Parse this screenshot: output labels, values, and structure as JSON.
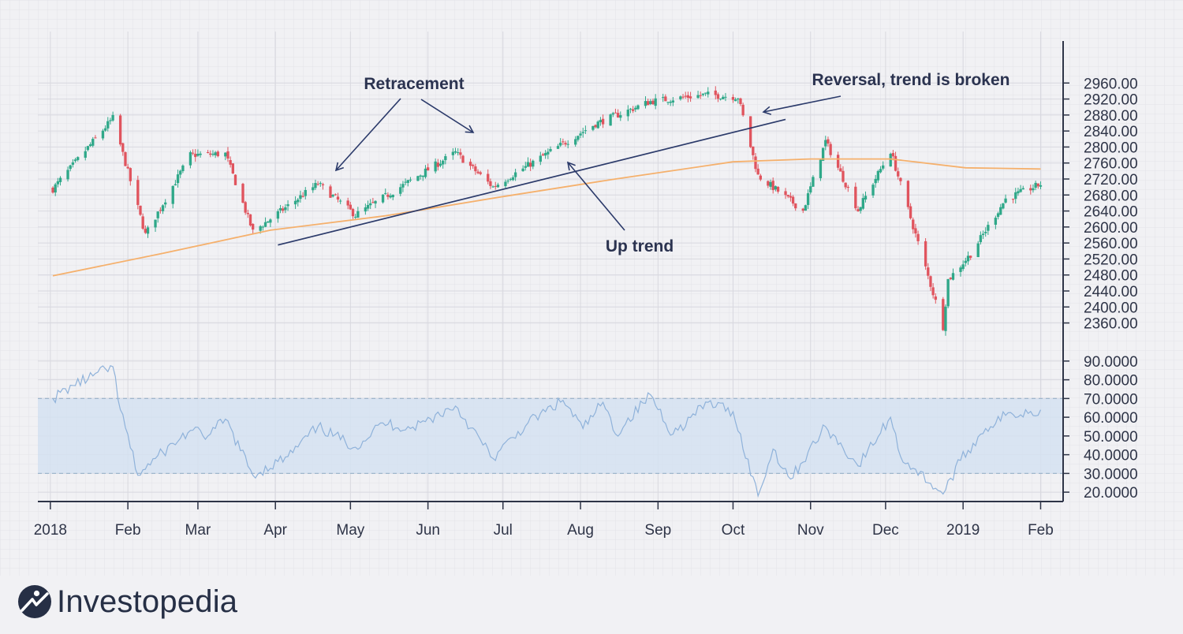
{
  "chart_data": [
    {
      "type": "candlestick",
      "ylim": [
        2300,
        3000
      ],
      "y_ticks": [
        "2960.00",
        "2920.00",
        "2880.00",
        "2840.00",
        "2800.00",
        "2760.00",
        "2720.00",
        "2680.00",
        "2640.00",
        "2600.00",
        "2560.00",
        "2520.00",
        "2480.00",
        "2440.00",
        "2400.00",
        "2360.00"
      ],
      "colors": {
        "up": "#2fa889",
        "down": "#e0545e",
        "moving_average": "#f5b06c",
        "trendline": "#2b3a6a"
      },
      "key_closes": [
        {
          "date": "2018-01-02",
          "value": 2695
        },
        {
          "date": "2018-01-26",
          "value": 2872
        },
        {
          "date": "2018-02-08",
          "value": 2581
        },
        {
          "date": "2018-02-26",
          "value": 2780
        },
        {
          "date": "2018-03-12",
          "value": 2783
        },
        {
          "date": "2018-03-23",
          "value": 2588
        },
        {
          "date": "2018-04-18",
          "value": 2708
        },
        {
          "date": "2018-05-03",
          "value": 2630
        },
        {
          "date": "2018-06-12",
          "value": 2786
        },
        {
          "date": "2018-06-27",
          "value": 2700
        },
        {
          "date": "2018-08-07",
          "value": 2858
        },
        {
          "date": "2018-08-29",
          "value": 2914
        },
        {
          "date": "2018-09-20",
          "value": 2931
        },
        {
          "date": "2018-10-03",
          "value": 2925
        },
        {
          "date": "2018-10-11",
          "value": 2728
        },
        {
          "date": "2018-10-29",
          "value": 2641
        },
        {
          "date": "2018-11-07",
          "value": 2814
        },
        {
          "date": "2018-11-20",
          "value": 2642
        },
        {
          "date": "2018-12-03",
          "value": 2790
        },
        {
          "date": "2018-12-24",
          "value": 2351
        },
        {
          "date": "2018-12-26",
          "value": 2468
        },
        {
          "date": "2019-01-04",
          "value": 2532
        },
        {
          "date": "2019-01-18",
          "value": 2670
        },
        {
          "date": "2019-02-01",
          "value": 2707
        }
      ],
      "moving_average": [
        {
          "date": "2018-01-02",
          "value": 2478
        },
        {
          "date": "2018-02-15",
          "value": 2534
        },
        {
          "date": "2018-03-30",
          "value": 2592
        },
        {
          "date": "2018-05-15",
          "value": 2628
        },
        {
          "date": "2018-07-01",
          "value": 2676
        },
        {
          "date": "2018-08-15",
          "value": 2720
        },
        {
          "date": "2018-10-01",
          "value": 2763
        },
        {
          "date": "2018-11-01",
          "value": 2770
        },
        {
          "date": "2018-12-03",
          "value": 2770
        },
        {
          "date": "2019-01-02",
          "value": 2748
        },
        {
          "date": "2019-02-01",
          "value": 2745
        }
      ],
      "trendline": [
        {
          "date": "2018-04-02",
          "value": 2555
        },
        {
          "date": "2018-10-08",
          "value": 2853
        },
        {
          "date": "2018-10-22",
          "value": 2869
        }
      ]
    },
    {
      "type": "line",
      "ylim": [
        15,
        95
      ],
      "y_ticks": [
        "90.0000",
        "80.0000",
        "70.0000",
        "60.0000",
        "50.0000",
        "40.0000",
        "30.0000",
        "20.0000"
      ],
      "band": [
        30,
        70
      ],
      "colors": {
        "line": "#8fb2da",
        "band": "#d5e2f1",
        "band_line": "#9fb6cc"
      },
      "series": [
        {
          "date": "2018-01-02",
          "value": 70
        },
        {
          "date": "2018-01-10",
          "value": 77
        },
        {
          "date": "2018-01-26",
          "value": 87
        },
        {
          "date": "2018-01-29",
          "value": 64
        },
        {
          "date": "2018-02-05",
          "value": 29
        },
        {
          "date": "2018-02-12",
          "value": 38
        },
        {
          "date": "2018-02-26",
          "value": 53
        },
        {
          "date": "2018-03-05",
          "value": 50
        },
        {
          "date": "2018-03-12",
          "value": 59
        },
        {
          "date": "2018-03-23",
          "value": 29
        },
        {
          "date": "2018-04-06",
          "value": 39
        },
        {
          "date": "2018-04-18",
          "value": 55
        },
        {
          "date": "2018-05-03",
          "value": 44
        },
        {
          "date": "2018-05-14",
          "value": 57
        },
        {
          "date": "2018-05-25",
          "value": 54
        },
        {
          "date": "2018-06-12",
          "value": 66
        },
        {
          "date": "2018-06-27",
          "value": 38
        },
        {
          "date": "2018-07-11",
          "value": 57
        },
        {
          "date": "2018-07-25",
          "value": 69
        },
        {
          "date": "2018-08-02",
          "value": 54
        },
        {
          "date": "2018-08-10",
          "value": 68
        },
        {
          "date": "2018-08-15",
          "value": 51
        },
        {
          "date": "2018-08-29",
          "value": 72
        },
        {
          "date": "2018-09-07",
          "value": 51
        },
        {
          "date": "2018-09-21",
          "value": 68
        },
        {
          "date": "2018-10-01",
          "value": 63
        },
        {
          "date": "2018-10-11",
          "value": 18
        },
        {
          "date": "2018-10-17",
          "value": 43
        },
        {
          "date": "2018-10-24",
          "value": 27
        },
        {
          "date": "2018-11-07",
          "value": 55
        },
        {
          "date": "2018-11-20",
          "value": 34
        },
        {
          "date": "2018-12-03",
          "value": 60
        },
        {
          "date": "2018-12-07",
          "value": 39
        },
        {
          "date": "2018-12-24",
          "value": 19
        },
        {
          "date": "2018-12-31",
          "value": 37
        },
        {
          "date": "2019-01-10",
          "value": 54
        },
        {
          "date": "2019-01-18",
          "value": 61
        },
        {
          "date": "2019-02-01",
          "value": 64
        }
      ]
    }
  ],
  "x_labels": [
    "2018",
    "Feb",
    "Mar",
    "Apr",
    "May",
    "Jun",
    "Jul",
    "Aug",
    "Sep",
    "Oct",
    "Nov",
    "Dec",
    "2019",
    "Feb"
  ],
  "annotations": {
    "retracement": "Retracement",
    "reversal": "Reversal, trend is broken",
    "uptrend": "Up trend"
  },
  "brand": {
    "name": "Investopedia",
    "color": "#262f45"
  }
}
